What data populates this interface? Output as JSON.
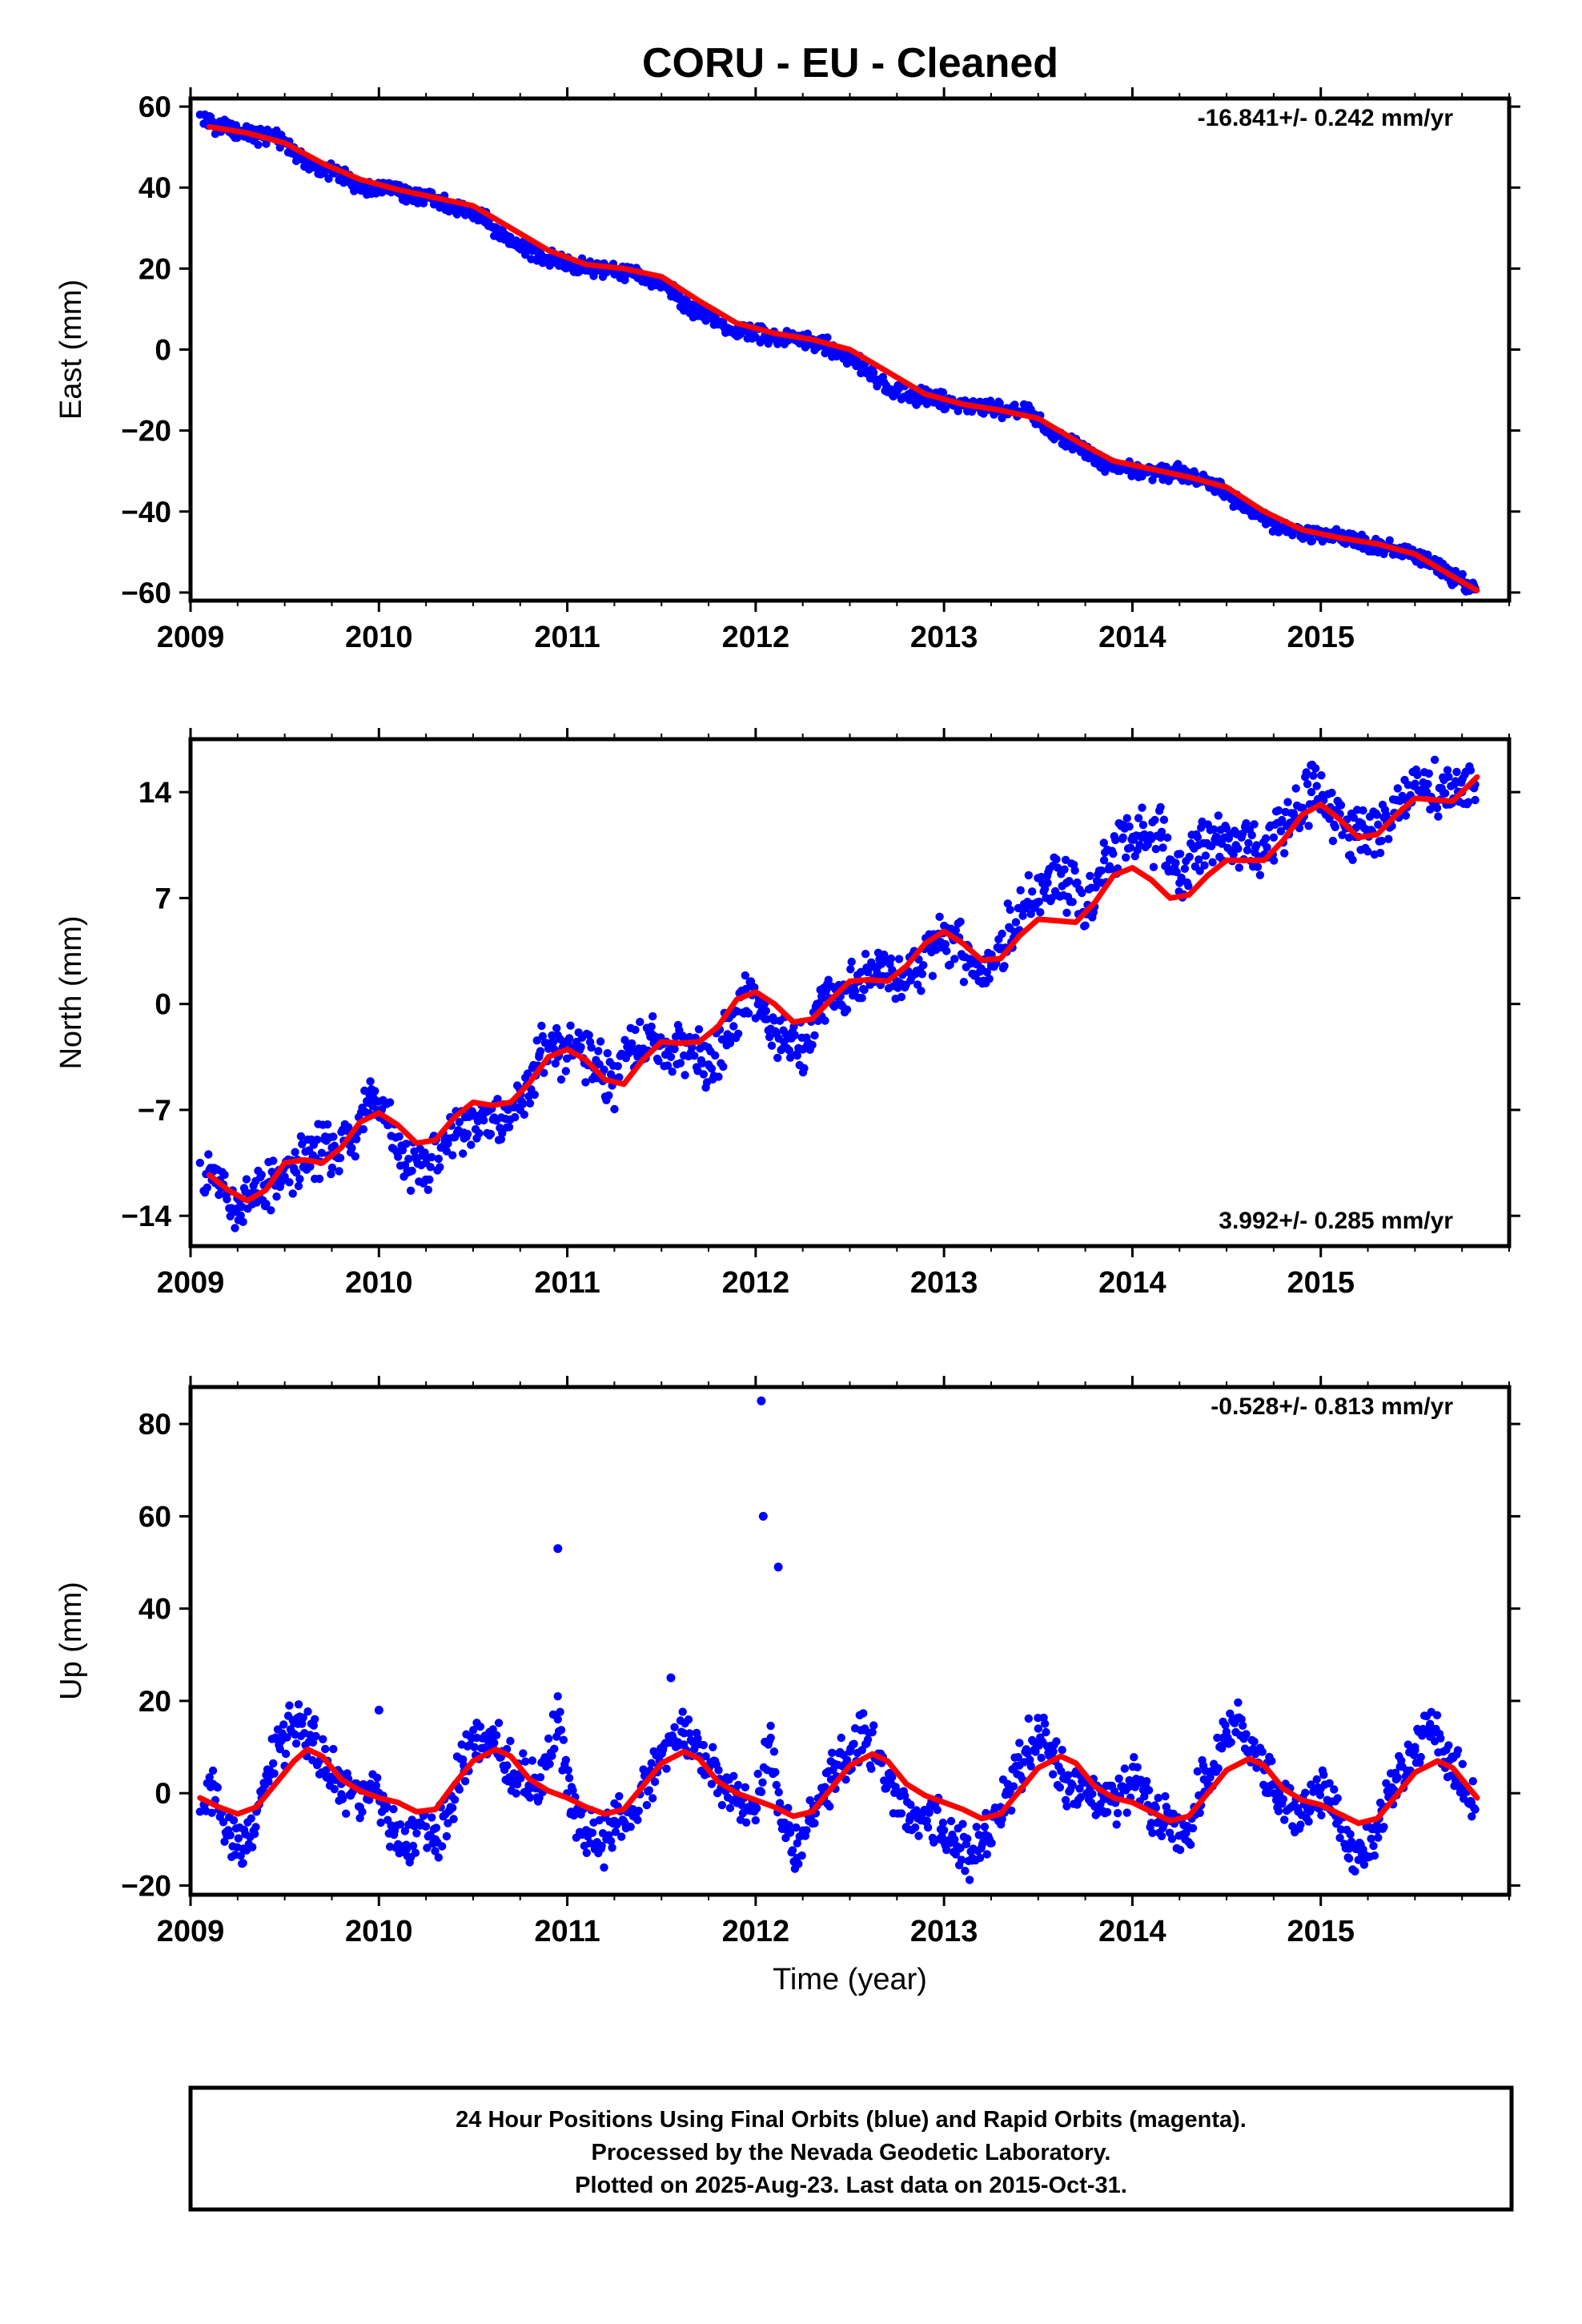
{
  "title": "CORU  - EU - Cleaned",
  "colors": {
    "points": "#0000ff",
    "model": "#ff0000",
    "frame": "#000000"
  },
  "chart_data": [
    {
      "type": "scatter",
      "ylabel": "East (mm)",
      "xlabel": "",
      "xlim": [
        2009.0,
        2016.0
      ],
      "ylim": [
        -62,
        62
      ],
      "xticks": [
        "2009",
        "2010",
        "2011",
        "2012",
        "2013",
        "2014",
        "2015"
      ],
      "yticks": [
        60,
        40,
        20,
        0,
        -20,
        -40,
        -60
      ],
      "ytick_labels": [
        "60",
        "40",
        "20",
        "0",
        "−20",
        "−40",
        "−60"
      ],
      "rate": "-16.841+/- 0.242 mm/yr",
      "rate_position": "top-right",
      "series": [
        {
          "role": "model",
          "x": [
            2009.1,
            2009.3,
            2009.5,
            2009.7,
            2009.9,
            2010.1,
            2010.3,
            2010.5,
            2010.7,
            2010.9,
            2011.1,
            2011.3,
            2011.5,
            2011.7,
            2011.9,
            2012.1,
            2012.3,
            2012.5,
            2012.7,
            2012.9,
            2013.1,
            2013.3,
            2013.5,
            2013.7,
            2013.9,
            2014.1,
            2014.3,
            2014.5,
            2014.7,
            2014.9,
            2015.1,
            2015.3,
            2015.5,
            2015.7,
            2015.83
          ],
          "y": [
            55,
            53.5,
            51,
            46,
            42,
            39.5,
            37.5,
            35.5,
            30,
            24.5,
            21,
            20,
            18,
            12,
            6.5,
            4,
            2.5,
            0,
            -5.5,
            -11,
            -13.5,
            -15,
            -17,
            -22.5,
            -27.5,
            -29.5,
            -31.5,
            -34,
            -40,
            -44.5,
            -46.5,
            -48,
            -50.5,
            -56,
            -59.5
          ]
        },
        {
          "role": "observations",
          "x": [
            2009.05,
            2009.15,
            2009.25,
            2009.35,
            2009.45,
            2009.55,
            2009.65,
            2009.75,
            2009.85,
            2009.95,
            2010.05,
            2010.15,
            2010.25,
            2010.35,
            2010.45,
            2010.55,
            2010.65,
            2010.75,
            2010.85,
            2010.95,
            2011.05,
            2011.15,
            2011.25,
            2011.35,
            2011.45,
            2011.55,
            2011.65,
            2011.75,
            2011.85,
            2011.95,
            2012.05,
            2012.15,
            2012.25,
            2012.35,
            2012.45,
            2012.55,
            2012.65,
            2012.75,
            2012.85,
            2012.95,
            2013.05,
            2013.15,
            2013.25,
            2013.35,
            2013.45,
            2013.55,
            2013.65,
            2013.75,
            2013.85,
            2013.95,
            2014.05,
            2014.15,
            2014.25,
            2014.35,
            2014.45,
            2014.55,
            2014.65,
            2014.75,
            2014.85,
            2014.95,
            2015.05,
            2015.15,
            2015.25,
            2015.35,
            2015.45,
            2015.55,
            2015.65,
            2015.75,
            2015.82
          ],
          "y": [
            58,
            55,
            54,
            52.5,
            53,
            49,
            45,
            44,
            41.5,
            40,
            40.5,
            38,
            37.5,
            36,
            34,
            33,
            28.5,
            26,
            23,
            22,
            20.5,
            20,
            19.5,
            18.5,
            17,
            14.5,
            10,
            8,
            5,
            5,
            3.5,
            3,
            2,
            2,
            -1,
            -3.5,
            -8,
            -10.5,
            -11.5,
            -12,
            -13.5,
            -14,
            -14.5,
            -15.5,
            -15.5,
            -20,
            -23,
            -25,
            -28,
            -29,
            -30,
            -30.5,
            -30.5,
            -32.5,
            -33.5,
            -37.5,
            -40,
            -43,
            -44.5,
            -45.5,
            -46,
            -47,
            -48,
            -48.5,
            -50,
            -52,
            -55,
            -57,
            -59
          ]
        }
      ]
    },
    {
      "type": "scatter",
      "ylabel": "North (mm)",
      "xlabel": "",
      "xlim": [
        2009.0,
        2016.0
      ],
      "ylim": [
        -16,
        17.5
      ],
      "xticks": [
        "2009",
        "2010",
        "2011",
        "2012",
        "2013",
        "2014",
        "2015"
      ],
      "yticks": [
        14,
        7,
        0,
        -7,
        -14
      ],
      "ytick_labels": [
        "14",
        "7",
        "0",
        "−7",
        "−14"
      ],
      "rate": "3.992+/- 0.285 mm/yr",
      "rate_position": "bottom-right",
      "series": [
        {
          "role": "model",
          "x": [
            2009.1,
            2009.2,
            2009.3,
            2009.4,
            2009.5,
            2009.6,
            2009.7,
            2009.8,
            2009.9,
            2010.0,
            2010.1,
            2010.2,
            2010.3,
            2010.4,
            2010.5,
            2010.6,
            2010.7,
            2010.8,
            2010.9,
            2011.0,
            2011.1,
            2011.2,
            2011.3,
            2011.4,
            2011.5,
            2011.6,
            2011.7,
            2011.8,
            2011.9,
            2012.0,
            2012.1,
            2012.2,
            2012.3,
            2012.4,
            2012.5,
            2012.6,
            2012.7,
            2012.8,
            2012.9,
            2013.0,
            2013.1,
            2013.2,
            2013.3,
            2013.4,
            2013.5,
            2013.6,
            2013.7,
            2013.8,
            2013.9,
            2014.0,
            2014.1,
            2014.2,
            2014.3,
            2014.4,
            2014.5,
            2014.6,
            2014.7,
            2014.8,
            2014.9,
            2015.0,
            2015.1,
            2015.2,
            2015.3,
            2015.4,
            2015.5,
            2015.6,
            2015.7,
            2015.83
          ],
          "y": [
            -11.3,
            -12.3,
            -13,
            -12.3,
            -10.5,
            -10.3,
            -10.5,
            -9.5,
            -7.8,
            -7.2,
            -8,
            -9.2,
            -9,
            -7.5,
            -6.5,
            -6.7,
            -6.5,
            -5.2,
            -3.5,
            -3,
            -3.7,
            -5,
            -5.3,
            -3.7,
            -2.5,
            -2.6,
            -2.5,
            -1.5,
            0.3,
            0.8,
            0,
            -1.2,
            -1,
            0.3,
            1.5,
            1.6,
            1.5,
            2.5,
            4,
            4.8,
            4,
            2.9,
            3,
            4.5,
            5.6,
            5.5,
            5.4,
            6.7,
            8.5,
            9,
            8.2,
            7,
            7.2,
            8.5,
            9.5,
            9.5,
            9.5,
            10.8,
            12.5,
            13.2,
            12.2,
            11,
            11.2,
            12.5,
            13.6,
            13.5,
            13.4,
            15
          ]
        },
        {
          "role": "observations",
          "x": [
            2009.05,
            2009.15,
            2009.25,
            2009.35,
            2009.45,
            2009.55,
            2009.65,
            2009.75,
            2009.85,
            2009.95,
            2010.05,
            2010.15,
            2010.25,
            2010.35,
            2010.45,
            2010.55,
            2010.65,
            2010.75,
            2010.85,
            2010.95,
            2011.05,
            2011.15,
            2011.25,
            2011.35,
            2011.45,
            2011.55,
            2011.65,
            2011.75,
            2011.85,
            2011.95,
            2012.05,
            2012.15,
            2012.25,
            2012.35,
            2012.45,
            2012.55,
            2012.65,
            2012.75,
            2012.85,
            2012.95,
            2013.05,
            2013.15,
            2013.25,
            2013.35,
            2013.45,
            2013.55,
            2013.65,
            2013.75,
            2013.85,
            2013.95,
            2014.05,
            2014.15,
            2014.25,
            2014.35,
            2014.45,
            2014.55,
            2014.65,
            2014.75,
            2014.85,
            2014.95,
            2015.05,
            2015.15,
            2015.25,
            2015.35,
            2015.45,
            2015.55,
            2015.65,
            2015.75,
            2015.82
          ],
          "y": [
            -10.5,
            -12,
            -13.5,
            -12.5,
            -12,
            -11,
            -10,
            -9.5,
            -9,
            -6,
            -8,
            -11,
            -10.5,
            -9,
            -8.5,
            -7.5,
            -7.5,
            -7,
            -3.5,
            -3.5,
            -2.5,
            -4,
            -5,
            -3,
            -2,
            -3.5,
            -2.5,
            -4,
            -2,
            1,
            -1,
            -2.5,
            -3,
            0.5,
            0.5,
            1.5,
            2.5,
            1.5,
            2,
            4,
            4.5,
            2,
            2.5,
            5,
            6.5,
            8,
            8,
            6,
            9.5,
            11,
            11,
            11,
            8,
            10.5,
            11,
            10.5,
            10,
            11,
            12,
            14,
            13,
            11,
            11.5,
            12,
            13.5,
            14.5,
            14,
            14,
            14.5
          ]
        }
      ]
    },
    {
      "type": "scatter",
      "ylabel": "Up (mm)",
      "xlabel": "Time (year)",
      "xlim": [
        2009.0,
        2016.0
      ],
      "ylim": [
        -22,
        88
      ],
      "xticks": [
        "2009",
        "2010",
        "2011",
        "2012",
        "2013",
        "2014",
        "2015"
      ],
      "yticks": [
        80,
        60,
        40,
        20,
        0,
        -20
      ],
      "ytick_labels": [
        "80",
        "60",
        "40",
        "20",
        "0",
        "−20"
      ],
      "rate": "-0.528+/- 0.813 mm/yr",
      "rate_position": "top-right",
      "series": [
        {
          "role": "model",
          "x": [
            2009.05,
            2009.15,
            2009.25,
            2009.35,
            2009.45,
            2009.55,
            2009.62,
            2009.7,
            2009.8,
            2009.9,
            2010.0,
            2010.1,
            2010.2,
            2010.3,
            2010.4,
            2010.5,
            2010.62,
            2010.7,
            2010.8,
            2010.9,
            2011.0,
            2011.1,
            2011.2,
            2011.3,
            2011.4,
            2011.5,
            2011.62,
            2011.7,
            2011.8,
            2011.9,
            2012.0,
            2012.1,
            2012.2,
            2012.3,
            2012.4,
            2012.5,
            2012.62,
            2012.7,
            2012.8,
            2012.9,
            2013.0,
            2013.1,
            2013.2,
            2013.3,
            2013.4,
            2013.5,
            2013.62,
            2013.7,
            2013.8,
            2013.9,
            2014.0,
            2014.1,
            2014.2,
            2014.3,
            2014.4,
            2014.5,
            2014.62,
            2014.7,
            2014.8,
            2014.9,
            2015.0,
            2015.1,
            2015.2,
            2015.3,
            2015.4,
            2015.5,
            2015.62,
            2015.7,
            2015.83
          ],
          "y": [
            -1,
            -3,
            -4.5,
            -3,
            2,
            7,
            9.5,
            8,
            3,
            0.5,
            -1,
            -2,
            -4,
            -3.5,
            2,
            7,
            9.5,
            8,
            3,
            0.5,
            -1,
            -3,
            -4.5,
            -3.5,
            1.5,
            6.5,
            9,
            7.5,
            2.5,
            0,
            -1.5,
            -3,
            -5,
            -4,
            1,
            6,
            8.5,
            7,
            2,
            -0.5,
            -2,
            -3.5,
            -5.5,
            -4.5,
            0.5,
            5.5,
            8,
            6.5,
            1.5,
            -1,
            -2,
            -4,
            -6,
            -5,
            0,
            5,
            7.5,
            6,
            1,
            -1.5,
            -2.5,
            -4.5,
            -6.5,
            -5.5,
            -0.5,
            4.5,
            7,
            5.5,
            -1
          ]
        },
        {
          "role": "observations",
          "x": [
            2009.05,
            2009.12,
            2009.2,
            2009.28,
            2009.35,
            2009.42,
            2009.5,
            2009.57,
            2009.65,
            2009.72,
            2009.8,
            2009.9,
            2010.0,
            2010.08,
            2010.15,
            2010.22,
            2010.3,
            2010.38,
            2010.45,
            2010.52,
            2010.6,
            2010.68,
            2010.75,
            2010.85,
            2010.95,
            2011.02,
            2011.1,
            2011.18,
            2011.25,
            2011.35,
            2011.45,
            2011.55,
            2011.62,
            2011.7,
            2011.8,
            2011.9,
            2012.0,
            2012.08,
            2012.15,
            2012.22,
            2012.3,
            2012.4,
            2012.5,
            2012.58,
            2012.65,
            2012.72,
            2012.82,
            2012.92,
            2013.0,
            2013.08,
            2013.15,
            2013.22,
            2013.3,
            2013.4,
            2013.5,
            2013.58,
            2013.65,
            2013.72,
            2013.82,
            2013.92,
            2014.0,
            2014.1,
            2014.2,
            2014.28,
            2014.38,
            2014.48,
            2014.55,
            2014.62,
            2014.7,
            2014.78,
            2014.88,
            2015.0,
            2015.08,
            2015.15,
            2015.22,
            2015.3,
            2015.4,
            2015.5,
            2015.58,
            2015.65,
            2015.72,
            2015.8
          ],
          "y": [
            -4,
            2,
            -8,
            -12,
            -4,
            5,
            12,
            15,
            11,
            5,
            2,
            -3,
            0,
            -9,
            -12,
            -7,
            -10,
            -3,
            6,
            12,
            13,
            6,
            4,
            1,
            16,
            -4,
            -8,
            -12,
            -6,
            -5,
            4,
            11,
            13,
            8,
            3,
            -1,
            -2,
            12,
            -7,
            -14,
            -4,
            3,
            9,
            14,
            7,
            2,
            -5,
            -4,
            -8,
            -12,
            -14,
            -9,
            -3,
            6,
            14,
            9,
            3,
            1,
            -3,
            -1,
            2,
            -4,
            -6,
            -10,
            3,
            12,
            16,
            9,
            5,
            0,
            -4,
            1,
            -5,
            -12,
            -14,
            -8,
            3,
            10,
            15,
            9,
            4,
            -2
          ]
        },
        {
          "role": "outliers",
          "x": [
            2010.0,
            2010.95,
            2011.55,
            2012.03,
            2012.04,
            2012.12
          ],
          "y": [
            18,
            53,
            25,
            85,
            60,
            49
          ]
        }
      ]
    }
  ],
  "footer": {
    "line1": "24 Hour Positions Using Final Orbits (blue) and Rapid Orbits (magenta).",
    "line2": "Processed by the Nevada Geodetic Laboratory.",
    "line3": "Plotted on 2025-Aug-23. Last data on 2015-Oct-31."
  }
}
